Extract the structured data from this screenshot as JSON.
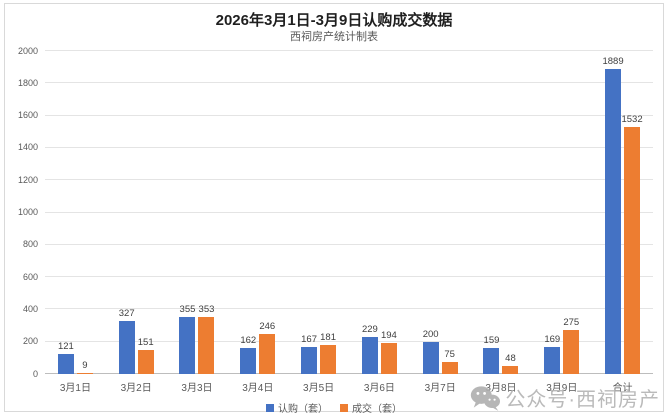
{
  "chart_data": {
    "type": "bar",
    "title": "2026年3月1日-3月9日认购成交数据",
    "subtitle": "西祠房产统计制表",
    "categories": [
      "3月1日",
      "3月2日",
      "3月3日",
      "3月4日",
      "3月5日",
      "3月6日",
      "3月7日",
      "3月8日",
      "3月9日",
      "合计"
    ],
    "series": [
      {
        "name": "认购（套）",
        "color": "#4472C4",
        "values": [
          121,
          327,
          355,
          162,
          167,
          229,
          200,
          159,
          169,
          1889
        ]
      },
      {
        "name": "成交（套）",
        "color": "#ED7D31",
        "values": [
          9,
          151,
          353,
          246,
          181,
          194,
          75,
          48,
          275,
          1532
        ]
      }
    ],
    "ylim": [
      0,
      2000
    ],
    "ytick_step": 200,
    "grid": true,
    "legend_position": "bottom",
    "data_labels": "outside-end",
    "xlabel": "",
    "ylabel": ""
  },
  "watermark": {
    "icon": "wechat-icon",
    "text": "公众号·西祠房产"
  },
  "colors": {
    "series_blue": "#4472C4",
    "series_orange": "#ED7D31",
    "frame_border": "#D9D9D9",
    "gridline": "#E4E4E4",
    "axis_line": "#BDBDBD",
    "title_text": "#1F1F1F",
    "muted_text": "#595959",
    "value_label_text": "#3F3F3F",
    "watermark_text": "#B5B5B5"
  }
}
